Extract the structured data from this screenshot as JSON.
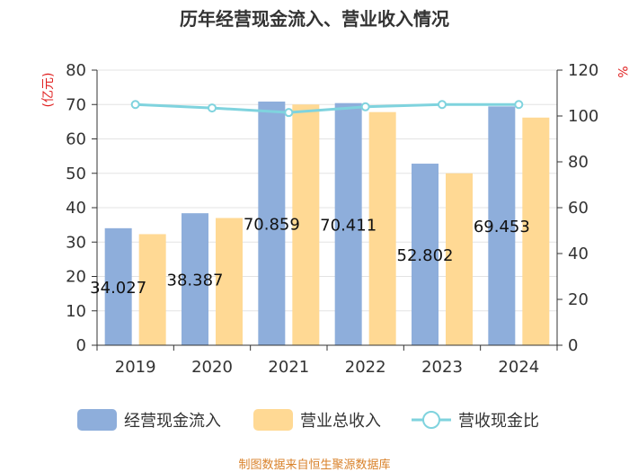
{
  "chart_data": {
    "type": "bar",
    "title": "历年经营现金流入、营业收入情况",
    "categories": [
      "2019",
      "2020",
      "2021",
      "2022",
      "2023",
      "2024"
    ],
    "series": [
      {
        "name": "经营现金流入",
        "axis": "left",
        "color": "#8eaedb",
        "values": [
          34.027,
          38.387,
          70.859,
          70.411,
          52.802,
          69.453
        ]
      },
      {
        "name": "营业总收入",
        "axis": "left",
        "color": "#ffd994",
        "values": [
          32.3,
          37.0,
          70.0,
          67.8,
          50.0,
          66.2
        ]
      },
      {
        "name": "营收现金比",
        "axis": "right",
        "type": "line",
        "color": "#7fd3de",
        "values": [
          105.0,
          103.5,
          101.5,
          104.0,
          105.0,
          105.0
        ]
      }
    ],
    "data_labels": [
      "34.027",
      "38.387",
      "70.859",
      "70.411",
      "52.802",
      "69.453"
    ],
    "left_axis": {
      "unit": "(亿元)",
      "ylim": [
        0,
        80
      ],
      "ticks": [
        "0",
        "10",
        "20",
        "30",
        "40",
        "50",
        "60",
        "70",
        "80"
      ]
    },
    "right_axis": {
      "unit": "%",
      "ylim": [
        0,
        120
      ],
      "ticks": [
        "0",
        "20",
        "40",
        "60",
        "80",
        "100",
        "120"
      ]
    },
    "grid": true,
    "legend_position": "bottom"
  },
  "source": "制图数据来自恒生聚源数据库"
}
